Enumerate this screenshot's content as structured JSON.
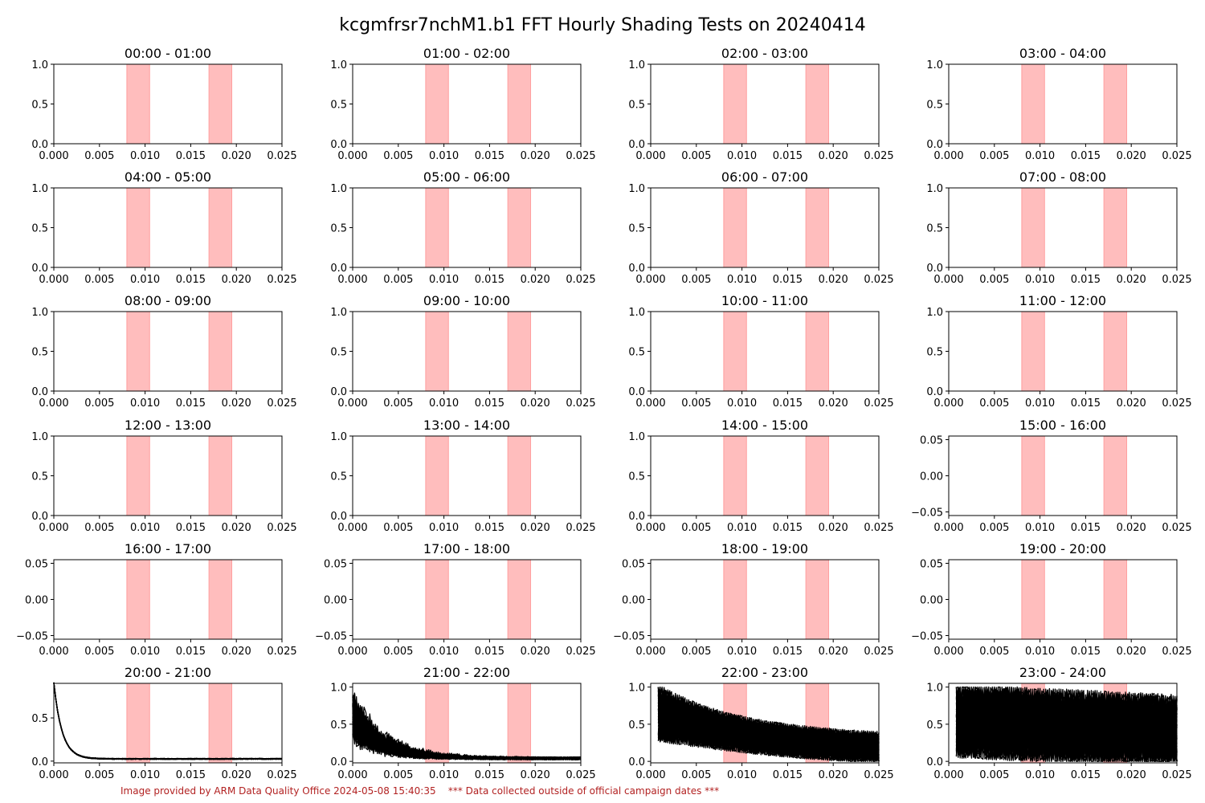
{
  "figure": {
    "title": "kcgmfrsr7nchM1.b1 FFT Hourly Shading Tests on 20240414",
    "footer_left": "Image provided by ARM Data Quality Office 2024-05-08 15:40:35",
    "footer_right": "*** Data collected outside of official campaign dates ***"
  },
  "colors": {
    "shade": "#ff9999",
    "line": "#000000",
    "footer": "#b22222"
  },
  "chart_data": {
    "type": "line",
    "xlim": [
      0,
      0.025
    ],
    "xticks": [
      "0.000",
      "0.005",
      "0.010",
      "0.015",
      "0.020",
      "0.025"
    ],
    "shaded_bands": [
      [
        0.008,
        0.0105
      ],
      [
        0.017,
        0.0195
      ]
    ],
    "panels": [
      {
        "title": "00:00 - 01:00",
        "ylim": [
          0,
          1
        ],
        "yticks": [
          "0.0",
          "0.5",
          "1.0"
        ],
        "signal": "none"
      },
      {
        "title": "01:00 - 02:00",
        "ylim": [
          0,
          1
        ],
        "yticks": [
          "0.0",
          "0.5",
          "1.0"
        ],
        "signal": "none"
      },
      {
        "title": "02:00 - 03:00",
        "ylim": [
          0,
          1
        ],
        "yticks": [
          "0.0",
          "0.5",
          "1.0"
        ],
        "signal": "none"
      },
      {
        "title": "03:00 - 04:00",
        "ylim": [
          0,
          1
        ],
        "yticks": [
          "0.0",
          "0.5",
          "1.0"
        ],
        "signal": "none"
      },
      {
        "title": "04:00 - 05:00",
        "ylim": [
          0,
          1
        ],
        "yticks": [
          "0.0",
          "0.5",
          "1.0"
        ],
        "signal": "none"
      },
      {
        "title": "05:00 - 06:00",
        "ylim": [
          0,
          1
        ],
        "yticks": [
          "0.0",
          "0.5",
          "1.0"
        ],
        "signal": "none"
      },
      {
        "title": "06:00 - 07:00",
        "ylim": [
          0,
          1
        ],
        "yticks": [
          "0.0",
          "0.5",
          "1.0"
        ],
        "signal": "none"
      },
      {
        "title": "07:00 - 08:00",
        "ylim": [
          0,
          1
        ],
        "yticks": [
          "0.0",
          "0.5",
          "1.0"
        ],
        "signal": "none"
      },
      {
        "title": "08:00 - 09:00",
        "ylim": [
          0,
          1
        ],
        "yticks": [
          "0.0",
          "0.5",
          "1.0"
        ],
        "signal": "none"
      },
      {
        "title": "09:00 - 10:00",
        "ylim": [
          0,
          1
        ],
        "yticks": [
          "0.0",
          "0.5",
          "1.0"
        ],
        "signal": "none"
      },
      {
        "title": "10:00 - 11:00",
        "ylim": [
          0,
          1
        ],
        "yticks": [
          "0.0",
          "0.5",
          "1.0"
        ],
        "signal": "none"
      },
      {
        "title": "11:00 - 12:00",
        "ylim": [
          0,
          1
        ],
        "yticks": [
          "0.0",
          "0.5",
          "1.0"
        ],
        "signal": "none"
      },
      {
        "title": "12:00 - 13:00",
        "ylim": [
          0,
          1
        ],
        "yticks": [
          "0.0",
          "0.5",
          "1.0"
        ],
        "signal": "none"
      },
      {
        "title": "13:00 - 14:00",
        "ylim": [
          0,
          1
        ],
        "yticks": [
          "0.0",
          "0.5",
          "1.0"
        ],
        "signal": "none"
      },
      {
        "title": "14:00 - 15:00",
        "ylim": [
          0,
          1
        ],
        "yticks": [
          "0.0",
          "0.5",
          "1.0"
        ],
        "signal": "none"
      },
      {
        "title": "15:00 - 16:00",
        "ylim": [
          -0.055,
          0.055
        ],
        "yticks": [
          "−0.05",
          "0.00",
          "0.05"
        ],
        "signal": "none"
      },
      {
        "title": "16:00 - 17:00",
        "ylim": [
          -0.055,
          0.055
        ],
        "yticks": [
          "−0.05",
          "0.00",
          "0.05"
        ],
        "signal": "none"
      },
      {
        "title": "17:00 - 18:00",
        "ylim": [
          -0.055,
          0.055
        ],
        "yticks": [
          "−0.05",
          "0.00",
          "0.05"
        ],
        "signal": "none"
      },
      {
        "title": "18:00 - 19:00",
        "ylim": [
          -0.055,
          0.055
        ],
        "yticks": [
          "−0.05",
          "0.00",
          "0.05"
        ],
        "signal": "none"
      },
      {
        "title": "19:00 - 20:00",
        "ylim": [
          -0.055,
          0.055
        ],
        "yticks": [
          "−0.05",
          "0.00",
          "0.05"
        ],
        "signal": "none"
      },
      {
        "title": "20:00 - 21:00",
        "ylim": [
          -0.02,
          0.9
        ],
        "yticks": [
          "0.0",
          "0.5"
        ],
        "signal": "decay_sharp"
      },
      {
        "title": "21:00 - 22:00",
        "ylim": [
          -0.02,
          1.05
        ],
        "yticks": [
          "0.0",
          "0.5",
          "1.0"
        ],
        "signal": "decay_noisy"
      },
      {
        "title": "22:00 - 23:00",
        "ylim": [
          -0.02,
          1.05
        ],
        "yticks": [
          "0.0",
          "0.5",
          "1.0"
        ],
        "signal": "noise_mid"
      },
      {
        "title": "23:00 - 24:00",
        "ylim": [
          -0.02,
          1.05
        ],
        "yticks": [
          "0.0",
          "0.5",
          "1.0"
        ],
        "signal": "noise_high"
      }
    ]
  }
}
